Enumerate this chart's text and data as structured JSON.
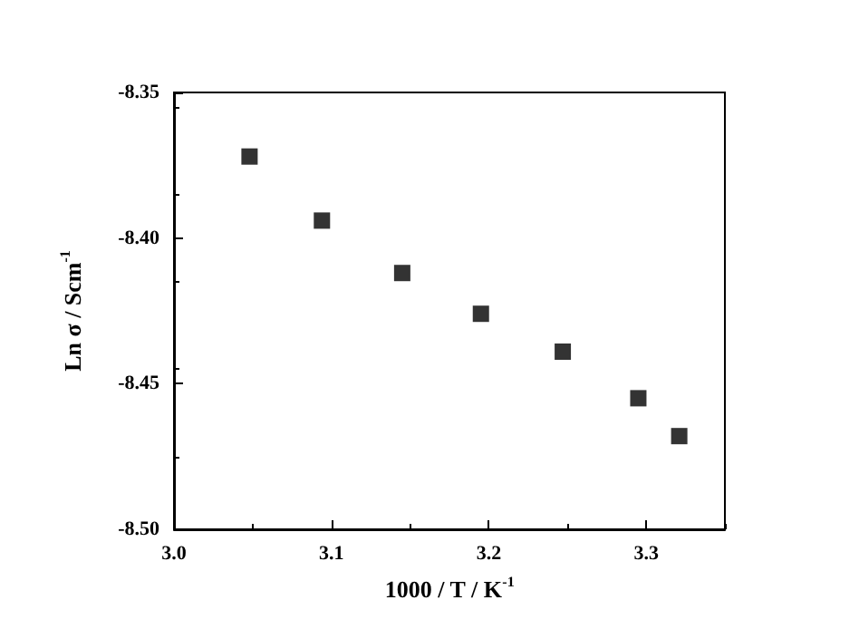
{
  "chart_data": {
    "type": "scatter",
    "xlabel": "1000 / T / K$^{-1}$",
    "ylabel": "Ln σ / Scm$^{-1}$",
    "x": [
      3.048,
      3.094,
      3.145,
      3.195,
      3.247,
      3.295,
      3.321
    ],
    "series": [
      {
        "color": "#000000",
        "values": [
          -8.372,
          -8.394,
          -8.412,
          -8.426,
          -8.439,
          -8.455,
          -8.468
        ]
      }
    ],
    "xlim": [
      3.0,
      3.35
    ],
    "xticks": [
      {
        "value": 3.0,
        "label": "3.0"
      },
      3.1,
      3.2,
      3.3
    ],
    "ylim": [
      -8.5,
      -8.35
    ],
    "yticks": [
      {
        "value": -8.5,
        "label": "-8.50"
      },
      -8.45,
      {
        "value": -8.4,
        "label": "-8.40"
      },
      -8.35
    ],
    "marker": "square",
    "grid": false
  }
}
